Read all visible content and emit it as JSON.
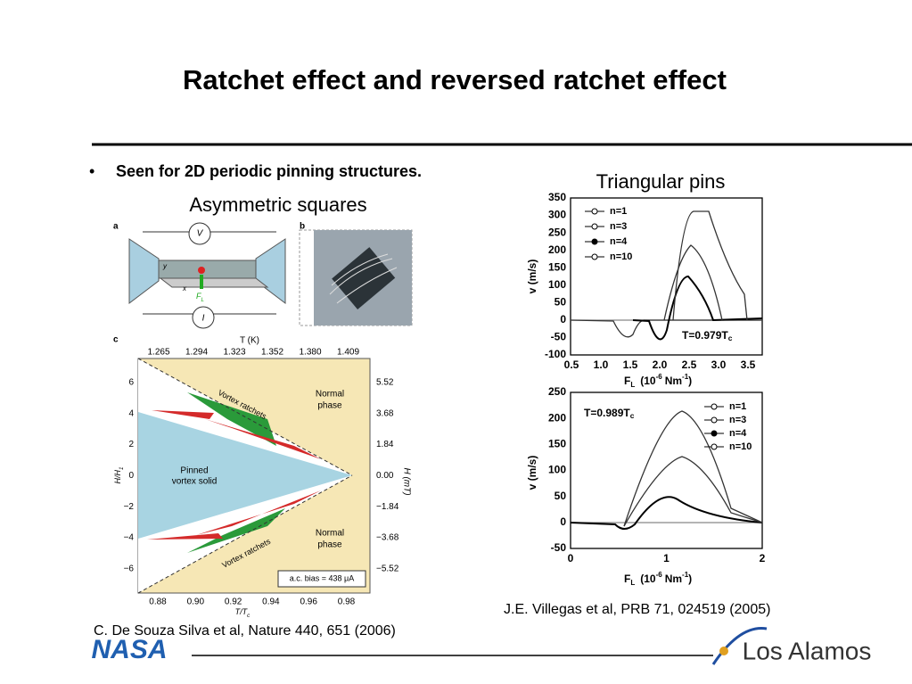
{
  "header": {
    "title": "Ratchet effect and reversed ratchet effect"
  },
  "bullet": {
    "marker": "•",
    "text": "Seen for 2D periodic pinning structures."
  },
  "left_figure": {
    "caption": "Asymmetric squares",
    "panel_labels": [
      "a",
      "b",
      "c"
    ],
    "panel_a": {
      "voltage": "V",
      "current": "I",
      "y": "y",
      "x": "x",
      "force": "F",
      "force_sub": "L"
    },
    "panel_c": {
      "top_axis_label": "T (K)",
      "top_ticks": [
        "1.265",
        "1.294",
        "1.323",
        "1.352",
        "1.380",
        "1.409"
      ],
      "bottom_ticks": [
        "0.88",
        "0.90",
        "0.92",
        "0.94",
        "0.96",
        "0.98"
      ],
      "bottom_axis_label": "T/T",
      "bottom_axis_sub": "c",
      "left_axis_label": "H/H",
      "left_axis_sub": "1",
      "left_ticks": [
        "6",
        "4",
        "2",
        "0",
        "−2",
        "−4",
        "−6"
      ],
      "right_axis_label": "H (mT)",
      "right_ticks": [
        "5.52",
        "3.68",
        "1.84",
        "0.00",
        "−1.84",
        "−3.68",
        "−5.52"
      ],
      "regions": [
        "Vortex ratchets",
        "Vortex ratchets",
        "Normal",
        "phase",
        "Normal",
        "phase",
        "Pinned",
        "vortex solid"
      ],
      "bias": "a.c. bias = 438 μA"
    },
    "citation": "C. De Souza Silva et al, Nature 440, 651 (2006)"
  },
  "right_figure": {
    "caption": "Triangular pins",
    "top_plot": {
      "yticks": [
        "350",
        "300",
        "250",
        "200",
        "150",
        "100",
        "50",
        "0",
        "-50",
        "-100"
      ],
      "xticks": [
        "0.5",
        "1.0",
        "1.5",
        "2.0",
        "2.5",
        "3.0",
        "3.5"
      ],
      "legend": [
        "n=1",
        "n=3",
        "n=4",
        "n=10"
      ],
      "temperature": "T=0.979T",
      "temperature_sub": "c"
    },
    "bottom_plot": {
      "yticks": [
        "250",
        "200",
        "150",
        "100",
        "50",
        "0",
        "-50"
      ],
      "xticks": [
        "0",
        "1",
        "2"
      ],
      "legend": [
        "n=1",
        "n=3",
        "n=4",
        "n=10"
      ],
      "temperature": "T=0.989T",
      "temperature_sub": "c"
    },
    "y_label": "v (m/s)",
    "x_label": "F",
    "x_label_sub": "L",
    "x_label_unit": "(10",
    "x_label_exp": "-6",
    "x_label_unit2": "Nm",
    "x_label_exp2": "-1",
    "x_label_close": ")",
    "citation": "J.E. Villegas et al, PRB 71, 024519 (2005)"
  },
  "footer": {
    "left_logo": "NASA",
    "right_logo": "Los Alamos"
  }
}
